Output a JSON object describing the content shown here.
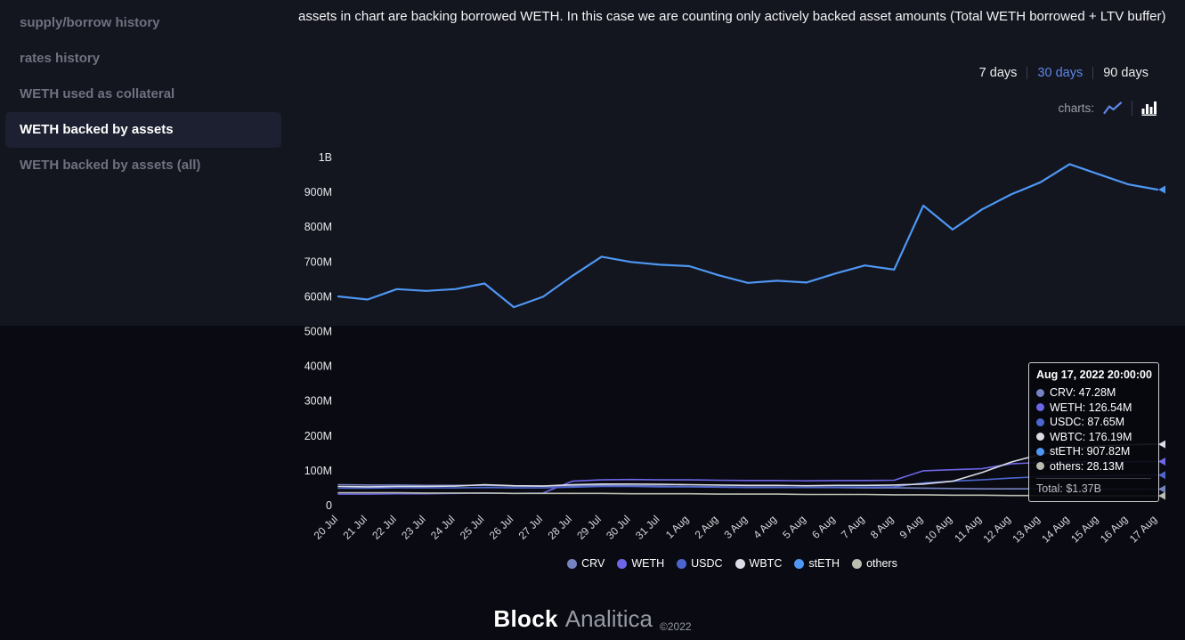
{
  "colors": {
    "accent_blue": "#5d87e8"
  },
  "sidebar": {
    "items": [
      {
        "label": "supply/borrow history",
        "active": false
      },
      {
        "label": "rates history",
        "active": false
      },
      {
        "label": "WETH used as collateral",
        "active": false
      },
      {
        "label": "WETH backed by assets",
        "active": true
      },
      {
        "label": "WETH backed by assets (all)",
        "active": false
      }
    ]
  },
  "header": {
    "description": "assets in chart are backing borrowed WETH. In this case we are counting only actively backed asset amounts (Total WETH borrowed + LTV buffer)"
  },
  "range_selector": {
    "options": [
      {
        "label": "7 days",
        "active": false
      },
      {
        "label": "30 days",
        "active": true
      },
      {
        "label": "90 days",
        "active": false
      }
    ]
  },
  "charts_toggle": {
    "label": "charts:",
    "icons": [
      {
        "name": "line-chart",
        "active": false
      },
      {
        "name": "bar-chart",
        "active": true
      }
    ]
  },
  "chart_data": {
    "type": "line",
    "title": "WETH backed by assets",
    "unit": "M",
    "ylim": [
      0,
      1000
    ],
    "grid": false,
    "legend_position": "bottom",
    "x_labels": [
      "20 Jul",
      "21 Jul",
      "22 Jul",
      "23 Jul",
      "24 Jul",
      "25 Jul",
      "26 Jul",
      "27 Jul",
      "28 Jul",
      "29 Jul",
      "30 Jul",
      "31 Jul",
      "1 Aug",
      "2 Aug",
      "3 Aug",
      "4 Aug",
      "5 Aug",
      "6 Aug",
      "7 Aug",
      "8 Aug",
      "9 Aug",
      "10 Aug",
      "11 Aug",
      "12 Aug",
      "13 Aug",
      "14 Aug",
      "15 Aug",
      "16 Aug",
      "17 Aug"
    ],
    "y_ticks": [
      {
        "value": 0,
        "label": "0"
      },
      {
        "value": 100,
        "label": "100M"
      },
      {
        "value": 200,
        "label": "200M"
      },
      {
        "value": 300,
        "label": "300M"
      },
      {
        "value": 400,
        "label": "400M"
      },
      {
        "value": 500,
        "label": "500M"
      },
      {
        "value": 600,
        "label": "600M"
      },
      {
        "value": 700,
        "label": "700M"
      },
      {
        "value": 800,
        "label": "800M"
      },
      {
        "value": 900,
        "label": "900M"
      },
      {
        "value": 1000,
        "label": "1B"
      }
    ],
    "series": [
      {
        "name": "CRV",
        "color": "#7583c2",
        "values": [
          60,
          59,
          59,
          58,
          58,
          58,
          56,
          56,
          57,
          58,
          57,
          56,
          55,
          54,
          53,
          53,
          52,
          52,
          51,
          51,
          50,
          49,
          48,
          48,
          48,
          47,
          47,
          47,
          47.28
        ]
      },
      {
        "name": "WETH",
        "color": "#6d66e8",
        "values": [
          33,
          33,
          34,
          34,
          35,
          36,
          35,
          36,
          70,
          74,
          75,
          74,
          74,
          73,
          72,
          72,
          71,
          72,
          72,
          73,
          100,
          103,
          106,
          120,
          124,
          125,
          126,
          126,
          126.54
        ]
      },
      {
        "name": "USDC",
        "color": "#4d66cf",
        "values": [
          50,
          50,
          51,
          51,
          51,
          52,
          51,
          51,
          53,
          55,
          55,
          54,
          54,
          53,
          52,
          52,
          52,
          53,
          53,
          54,
          65,
          70,
          74,
          79,
          83,
          85,
          86,
          87,
          87.65
        ]
      },
      {
        "name": "WBTC",
        "color": "#dadce6",
        "values": [
          55,
          54,
          55,
          55,
          56,
          60,
          57,
          56,
          60,
          62,
          62,
          61,
          60,
          59,
          58,
          58,
          57,
          58,
          58,
          59,
          62,
          70,
          95,
          125,
          147,
          163,
          171,
          175,
          176.19
        ]
      },
      {
        "name": "stETH",
        "color": "#4e97f3",
        "values": [
          601,
          592,
          622,
          617,
          622,
          638,
          570,
          600,
          660,
          715,
          700,
          692,
          688,
          662,
          640,
          646,
          641,
          667,
          690,
          678,
          862,
          793,
          851,
          894,
          929,
          981,
          952,
          923,
          907.82
        ]
      },
      {
        "name": "others",
        "color": "#b9beb0",
        "values": [
          37,
          37,
          37,
          36,
          36,
          36,
          35,
          35,
          35,
          35,
          34,
          34,
          34,
          33,
          33,
          33,
          32,
          32,
          32,
          31,
          31,
          30,
          30,
          29,
          29,
          29,
          28,
          28,
          28.13
        ]
      }
    ]
  },
  "tooltip": {
    "title": "Aug 17, 2022 20:00:00",
    "rows": [
      {
        "series": "CRV",
        "value": "47.28M"
      },
      {
        "series": "WETH",
        "value": "126.54M"
      },
      {
        "series": "USDC",
        "value": "87.65M"
      },
      {
        "series": "WBTC",
        "value": "176.19M"
      },
      {
        "series": "stETH",
        "value": "907.82M"
      },
      {
        "series": "others",
        "value": "28.13M"
      }
    ],
    "total": "Total: $1.37B"
  },
  "footer": {
    "brand_bold": "Block",
    "brand_light": "Analitica",
    "copyright": "©2022"
  }
}
